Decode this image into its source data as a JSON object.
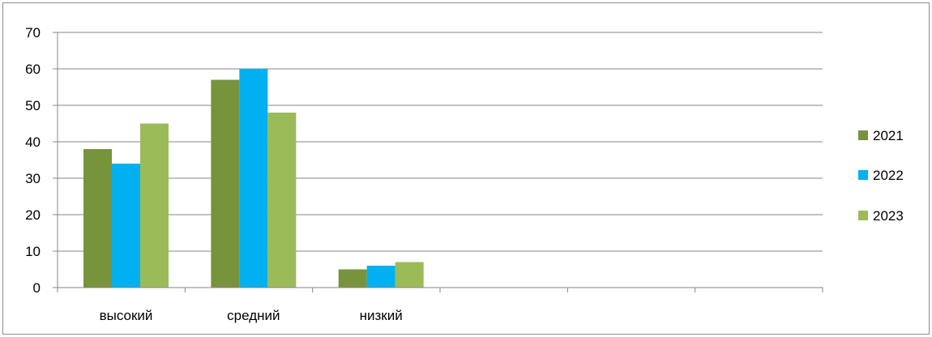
{
  "chart_data": {
    "type": "bar",
    "categories": [
      "высокий",
      "средний",
      "низкий",
      "",
      "",
      ""
    ],
    "series": [
      {
        "name": "2021",
        "color": "#77933c",
        "values": [
          38,
          57,
          5,
          null,
          null,
          null
        ]
      },
      {
        "name": "2022",
        "color": "#00b0f0",
        "values": [
          34,
          60,
          6,
          null,
          null,
          null
        ]
      },
      {
        "name": "2023",
        "color": "#9bbb59",
        "values": [
          45,
          48,
          7,
          null,
          null,
          null
        ]
      }
    ],
    "ylim": [
      0,
      70
    ],
    "yticks": [
      "0",
      "10",
      "20",
      "30",
      "40",
      "50",
      "60",
      "70"
    ],
    "grid": true,
    "legend": "right",
    "title": "",
    "xlabel": "",
    "ylabel": ""
  }
}
